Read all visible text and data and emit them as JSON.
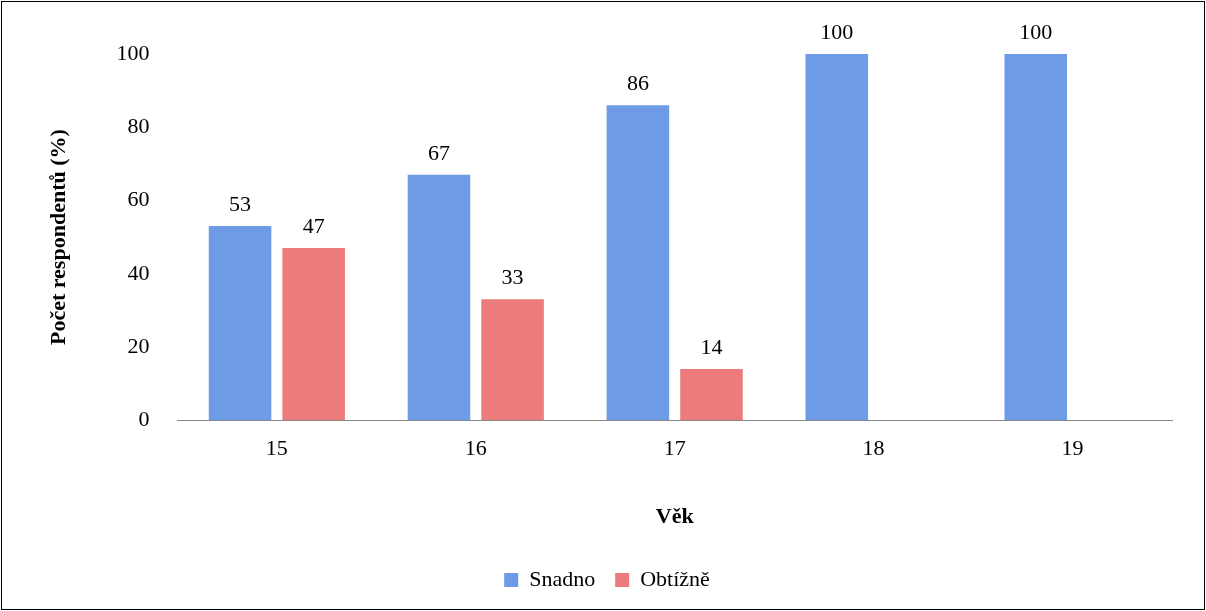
{
  "chart_data": {
    "type": "bar",
    "xlabel": "Věk",
    "ylabel": "Počet respondentů (%)",
    "categories": [
      "15",
      "16",
      "17",
      "18",
      "19"
    ],
    "series": [
      {
        "name": "Snadno",
        "color": "#6d9be6",
        "values": [
          53,
          67,
          86,
          100,
          100
        ]
      },
      {
        "name": "Obtížně",
        "color": "#ec7b7b",
        "values": [
          47,
          33,
          14,
          null,
          null
        ]
      }
    ],
    "ylim": [
      0,
      100
    ],
    "yticks": [
      0,
      20,
      40,
      60,
      80,
      100
    ],
    "grid": false,
    "legend": "bottom",
    "data_labels": true
  }
}
